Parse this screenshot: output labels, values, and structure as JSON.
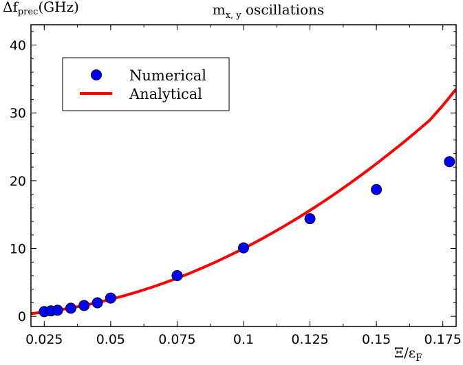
{
  "chart_data": {
    "type": "scatter",
    "title": {
      "main": "m",
      "sub": "x, y",
      "rest": " oscillations"
    },
    "ylabel": {
      "main": "Δf",
      "sub": "prec",
      "rest": "(GHz)"
    },
    "xlabel": {
      "main": "Ξ/ε",
      "sub": "F"
    },
    "xlim": [
      0.02,
      0.18
    ],
    "ylim": [
      -1.5,
      43
    ],
    "xticks": [
      0.025,
      0.05,
      0.075,
      0.1,
      0.125,
      0.15,
      0.175
    ],
    "xtick_labels": [
      "0.025",
      "0.05",
      "0.075",
      "0.1",
      "0.125",
      "0.15",
      "0.175"
    ],
    "yticks": [
      0,
      10,
      20,
      30,
      40
    ],
    "ytick_labels": [
      "0",
      "10",
      "20",
      "30",
      "40"
    ],
    "grid": false,
    "legend_position": "upper-left",
    "series": [
      {
        "name": "Numerical",
        "kind": "scatter",
        "color": "#0000ff",
        "x": [
          0.025,
          0.0275,
          0.03,
          0.035,
          0.04,
          0.045,
          0.05,
          0.075,
          0.1,
          0.125,
          0.15,
          0.1775
        ],
        "y": [
          0.7,
          0.8,
          0.9,
          1.2,
          1.6,
          2.0,
          2.7,
          6.0,
          10.1,
          14.4,
          18.7,
          22.8
        ]
      },
      {
        "name": "Analytical",
        "kind": "line",
        "color": "#ff0000",
        "x": [
          0.02,
          0.025,
          0.03,
          0.035,
          0.04,
          0.045,
          0.05,
          0.055,
          0.06,
          0.065,
          0.07,
          0.075,
          0.08,
          0.085,
          0.09,
          0.095,
          0.1,
          0.105,
          0.11,
          0.115,
          0.12,
          0.125,
          0.13,
          0.135,
          0.14,
          0.145,
          0.15,
          0.155,
          0.16,
          0.165,
          0.17,
          0.175,
          0.18
        ],
        "y": [
          0.4,
          0.63,
          0.9,
          1.23,
          1.6,
          2.03,
          2.5,
          3.03,
          3.6,
          4.23,
          4.9,
          5.63,
          6.4,
          7.23,
          8.1,
          9.03,
          10.0,
          11.03,
          12.1,
          13.23,
          14.4,
          15.63,
          16.9,
          18.23,
          19.6,
          21.03,
          22.5,
          24.03,
          25.6,
          27.23,
          28.9,
          31.1,
          33.5
        ]
      }
    ]
  }
}
